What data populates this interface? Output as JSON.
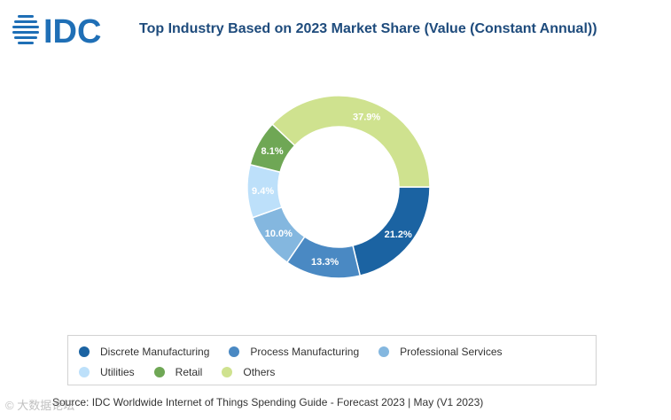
{
  "brand": {
    "logo_text": "IDC",
    "logo_color": "#1f6fb6"
  },
  "chart_data": {
    "type": "pie",
    "title": "Top Industry Based on 2023 Market Share (Value (Constant Annual))",
    "categories": [
      "Discrete Manufacturing",
      "Process Manufacturing",
      "Professional Services",
      "Utilities",
      "Retail",
      "Others"
    ],
    "values": [
      21.2,
      13.3,
      10.0,
      9.4,
      8.1,
      37.9
    ],
    "value_labels": [
      "21.2%",
      "13.3%",
      "10.0%",
      "9.4%",
      "8.1%",
      "37.9%"
    ],
    "colors": [
      "#1b63a2",
      "#4a89c3",
      "#84b7df",
      "#bde0fa",
      "#6fa755",
      "#cfe28f"
    ],
    "legend_position": "bottom"
  },
  "source": "Source: IDC Worldwide Internet of Things Spending Guide - Forecast 2023 | May (V1 2023)",
  "watermark": "© 大数据论坛"
}
